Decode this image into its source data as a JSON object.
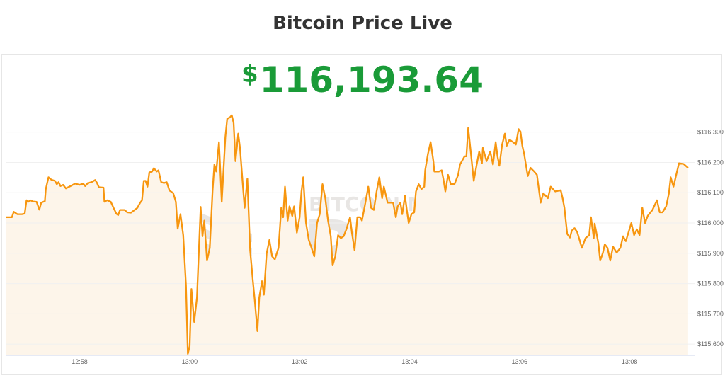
{
  "title": "Bitcoin Price Live",
  "price": {
    "currency": "$",
    "value": "116,193.64",
    "color": "#1a9b38"
  },
  "watermark": {
    "top": "BITCOIN MAGAZINE",
    "big": "PRO"
  },
  "chart_data": {
    "type": "area",
    "title": "",
    "xlabel": "",
    "ylabel": "",
    "line_color": "#f7960f",
    "fill_color": "#fdf5ea",
    "grid": true,
    "y_axis_position": "right",
    "xlim": [
      "12:56:40",
      "13:09:11"
    ],
    "ylim": [
      115563,
      116395
    ],
    "x_ticks": [
      "12:58",
      "13:00",
      "13:02",
      "13:04",
      "13:06",
      "13:08"
    ],
    "y_ticks": [
      115600,
      115700,
      115800,
      115900,
      116000,
      116100,
      116200,
      116300
    ],
    "y_tick_labels": [
      "$115,600",
      "$115,700",
      "$115,800",
      "$115,900",
      "$116,000",
      "$116,100",
      "$116,200",
      "$116,300"
    ],
    "series": [
      {
        "points": [
          [
            "12:56:40",
            116019
          ],
          [
            "12:56:46",
            116019
          ],
          [
            "12:56:48",
            116037
          ],
          [
            "12:56:52",
            116029
          ],
          [
            "12:56:57",
            116029
          ],
          [
            "12:57:00",
            116031
          ],
          [
            "12:57:02",
            116075
          ],
          [
            "12:57:04",
            116070
          ],
          [
            "12:57:06",
            116075
          ],
          [
            "12:57:09",
            116071
          ],
          [
            "12:57:13",
            116070
          ],
          [
            "12:57:16",
            116044
          ],
          [
            "12:57:18",
            116067
          ],
          [
            "12:57:22",
            116072
          ],
          [
            "12:57:23",
            116112
          ],
          [
            "12:57:26",
            116151
          ],
          [
            "12:57:29",
            116143
          ],
          [
            "12:57:33",
            116139
          ],
          [
            "12:57:35",
            116128
          ],
          [
            "12:57:37",
            116135
          ],
          [
            "12:57:39",
            116122
          ],
          [
            "12:57:42",
            116126
          ],
          [
            "12:57:45",
            116114
          ],
          [
            "12:57:50",
            116122
          ],
          [
            "12:57:55",
            116130
          ],
          [
            "12:58:00",
            116126
          ],
          [
            "12:58:04",
            116130
          ],
          [
            "12:58:06",
            116122
          ],
          [
            "12:58:09",
            116132
          ],
          [
            "12:58:13",
            116135
          ],
          [
            "12:58:17",
            116142
          ],
          [
            "12:58:19",
            116132
          ],
          [
            "12:58:21",
            116118
          ],
          [
            "12:58:26",
            116117
          ],
          [
            "12:58:27",
            116070
          ],
          [
            "12:58:30",
            116075
          ],
          [
            "12:58:34",
            116070
          ],
          [
            "12:58:37",
            116050
          ],
          [
            "12:58:40",
            116031
          ],
          [
            "12:58:42",
            116026
          ],
          [
            "12:58:44",
            116043
          ],
          [
            "12:58:49",
            116043
          ],
          [
            "12:58:52",
            116035
          ],
          [
            "12:58:56",
            116034
          ],
          [
            "12:59:00",
            116043
          ],
          [
            "12:59:03",
            116050
          ],
          [
            "12:59:06",
            116067
          ],
          [
            "12:59:08",
            116075
          ],
          [
            "12:59:10",
            116139
          ],
          [
            "12:59:12",
            116139
          ],
          [
            "12:59:14",
            116120
          ],
          [
            "12:59:16",
            116167
          ],
          [
            "12:59:19",
            116170
          ],
          [
            "12:59:21",
            116181
          ],
          [
            "12:59:24",
            116170
          ],
          [
            "12:59:26",
            116174
          ],
          [
            "12:59:29",
            116135
          ],
          [
            "12:59:32",
            116132
          ],
          [
            "12:59:35",
            116135
          ],
          [
            "12:59:38",
            116107
          ],
          [
            "12:59:42",
            116099
          ],
          [
            "12:59:45",
            116070
          ],
          [
            "12:59:47",
            115981
          ],
          [
            "12:59:50",
            116029
          ],
          [
            "12:59:53",
            115960
          ],
          [
            "12:59:56",
            115794
          ],
          [
            "12:59:58",
            115568
          ],
          [
            "13:00:00",
            115593
          ],
          [
            "13:00:02",
            115782
          ],
          [
            "13:00:05",
            115673
          ],
          [
            "13:00:08",
            115754
          ],
          [
            "13:00:12",
            116053
          ],
          [
            "13:00:14",
            115956
          ],
          [
            "13:00:16",
            116008
          ],
          [
            "13:00:19",
            115876
          ],
          [
            "13:00:22",
            115918
          ],
          [
            "13:00:25",
            116104
          ],
          [
            "13:00:27",
            116193
          ],
          [
            "13:00:29",
            116170
          ],
          [
            "13:00:32",
            116267
          ],
          [
            "13:00:35",
            116070
          ],
          [
            "13:00:39",
            116284
          ],
          [
            "13:00:41",
            116344
          ],
          [
            "13:00:44",
            116349
          ],
          [
            "13:00:46",
            116356
          ],
          [
            "13:00:48",
            116330
          ],
          [
            "13:00:50",
            116204
          ],
          [
            "13:00:53",
            116295
          ],
          [
            "13:00:55",
            116248
          ],
          [
            "13:00:58",
            116128
          ],
          [
            "13:01:00",
            116050
          ],
          [
            "13:01:03",
            116146
          ],
          [
            "13:01:06",
            115910
          ],
          [
            "13:01:09",
            115808
          ],
          [
            "13:01:11",
            115748
          ],
          [
            "13:01:14",
            115643
          ],
          [
            "13:01:16",
            115754
          ],
          [
            "13:01:19",
            115808
          ],
          [
            "13:01:21",
            115763
          ],
          [
            "13:01:24",
            115899
          ],
          [
            "13:01:27",
            115944
          ],
          [
            "13:01:30",
            115890
          ],
          [
            "13:01:33",
            115880
          ],
          [
            "13:01:37",
            115918
          ],
          [
            "13:01:40",
            116050
          ],
          [
            "13:01:42",
            116019
          ],
          [
            "13:01:44",
            116120
          ],
          [
            "13:01:47",
            116008
          ],
          [
            "13:01:49",
            116055
          ],
          [
            "13:01:52",
            116023
          ],
          [
            "13:01:54",
            116055
          ],
          [
            "13:01:57",
            115968
          ],
          [
            "13:02:00",
            116019
          ],
          [
            "13:02:02",
            116104
          ],
          [
            "13:02:04",
            116151
          ],
          [
            "13:02:07",
            116000
          ],
          [
            "13:02:10",
            115944
          ],
          [
            "13:02:13",
            115918
          ],
          [
            "13:02:16",
            115890
          ],
          [
            "13:02:19",
            116000
          ],
          [
            "13:02:22",
            116029
          ],
          [
            "13:02:25",
            116128
          ],
          [
            "13:02:28",
            116082
          ],
          [
            "13:02:31",
            116008
          ],
          [
            "13:02:34",
            115956
          ],
          [
            "13:02:36",
            115860
          ],
          [
            "13:02:39",
            115890
          ],
          [
            "13:02:42",
            115960
          ],
          [
            "13:02:45",
            115950
          ],
          [
            "13:02:48",
            115956
          ],
          [
            "13:02:51",
            115979
          ],
          [
            "13:02:55",
            116019
          ],
          [
            "13:02:57",
            115970
          ],
          [
            "13:03:00",
            115910
          ],
          [
            "13:03:03",
            116019
          ],
          [
            "13:03:06",
            116019
          ],
          [
            "13:03:08",
            116008
          ],
          [
            "13:03:11",
            116055
          ],
          [
            "13:03:15",
            116120
          ],
          [
            "13:03:18",
            116050
          ],
          [
            "13:03:21",
            116043
          ],
          [
            "13:03:24",
            116104
          ],
          [
            "13:03:27",
            116151
          ],
          [
            "13:03:30",
            116082
          ],
          [
            "13:03:32",
            116120
          ],
          [
            "13:03:36",
            116067
          ],
          [
            "13:03:42",
            116067
          ],
          [
            "13:03:45",
            116019
          ],
          [
            "13:03:47",
            116055
          ],
          [
            "13:03:50",
            116067
          ],
          [
            "13:03:52",
            116029
          ],
          [
            "13:03:55",
            116090
          ],
          [
            "13:03:57",
            116043
          ],
          [
            "13:03:59",
            116000
          ],
          [
            "13:04:02",
            116029
          ],
          [
            "13:04:05",
            116035
          ],
          [
            "13:04:07",
            116104
          ],
          [
            "13:04:10",
            116128
          ],
          [
            "13:04:13",
            116112
          ],
          [
            "13:04:16",
            116120
          ],
          [
            "13:04:17",
            116174
          ],
          [
            "13:04:20",
            116228
          ],
          [
            "13:04:23",
            116267
          ],
          [
            "13:04:26",
            116204
          ],
          [
            "13:04:27",
            116170
          ],
          [
            "13:04:32",
            116170
          ],
          [
            "13:04:35",
            116174
          ],
          [
            "13:04:37",
            116143
          ],
          [
            "13:04:39",
            116104
          ],
          [
            "13:04:42",
            116159
          ],
          [
            "13:04:45",
            116128
          ],
          [
            "13:04:49",
            116128
          ],
          [
            "13:04:53",
            116159
          ],
          [
            "13:04:55",
            116193
          ],
          [
            "13:05:00",
            116220
          ],
          [
            "13:05:02",
            116220
          ],
          [
            "13:05:04",
            116314
          ],
          [
            "13:05:07",
            116228
          ],
          [
            "13:05:10",
            116139
          ],
          [
            "13:05:13",
            116189
          ],
          [
            "13:05:16",
            116236
          ],
          [
            "13:05:19",
            116197
          ],
          [
            "13:05:20",
            116248
          ],
          [
            "13:05:24",
            116204
          ],
          [
            "13:05:28",
            116236
          ],
          [
            "13:05:31",
            116193
          ],
          [
            "13:05:34",
            116267
          ],
          [
            "13:05:36",
            116220
          ],
          [
            "13:05:38",
            116189
          ],
          [
            "13:05:41",
            116259
          ],
          [
            "13:05:44",
            116295
          ],
          [
            "13:05:46",
            116255
          ],
          [
            "13:05:49",
            116275
          ],
          [
            "13:05:53",
            116267
          ],
          [
            "13:05:56",
            116259
          ],
          [
            "13:05:59",
            116310
          ],
          [
            "13:06:01",
            116302
          ],
          [
            "13:06:03",
            116255
          ],
          [
            "13:06:05",
            116228
          ],
          [
            "13:06:09",
            116155
          ],
          [
            "13:06:12",
            116182
          ],
          [
            "13:06:16",
            116170
          ],
          [
            "13:06:19",
            116159
          ],
          [
            "13:06:23",
            116067
          ],
          [
            "13:06:26",
            116098
          ],
          [
            "13:06:31",
            116082
          ],
          [
            "13:06:34",
            116120
          ],
          [
            "13:06:39",
            116104
          ],
          [
            "13:06:45",
            116108
          ],
          [
            "13:06:47",
            116082
          ],
          [
            "13:06:49",
            116050
          ],
          [
            "13:06:52",
            115964
          ],
          [
            "13:06:55",
            115952
          ],
          [
            "13:06:57",
            115975
          ],
          [
            "13:07:00",
            115983
          ],
          [
            "13:07:03",
            115970
          ],
          [
            "13:07:08",
            115918
          ],
          [
            "13:07:12",
            115950
          ],
          [
            "13:07:16",
            115960
          ],
          [
            "13:07:18",
            116019
          ],
          [
            "13:07:21",
            115950
          ],
          [
            "13:07:22",
            115998
          ],
          [
            "13:07:26",
            115934
          ],
          [
            "13:07:28",
            115876
          ],
          [
            "13:07:31",
            115902
          ],
          [
            "13:07:33",
            115930
          ],
          [
            "13:07:36",
            115918
          ],
          [
            "13:07:39",
            115876
          ],
          [
            "13:07:42",
            115922
          ],
          [
            "13:07:46",
            115902
          ],
          [
            "13:07:50",
            115918
          ],
          [
            "13:07:53",
            115956
          ],
          [
            "13:07:56",
            115940
          ],
          [
            "13:07:59",
            115970
          ],
          [
            "13:08:02",
            116000
          ],
          [
            "13:08:05",
            115960
          ],
          [
            "13:08:08",
            115979
          ],
          [
            "13:08:11",
            115960
          ],
          [
            "13:08:14",
            116050
          ],
          [
            "13:08:17",
            116000
          ],
          [
            "13:08:20",
            116024
          ],
          [
            "13:08:25",
            116043
          ],
          [
            "13:08:30",
            116075
          ],
          [
            "13:08:33",
            116035
          ],
          [
            "13:08:36",
            116035
          ],
          [
            "13:08:40",
            116055
          ],
          [
            "13:08:43",
            116098
          ],
          [
            "13:08:45",
            116151
          ],
          [
            "13:08:48",
            116120
          ],
          [
            "13:08:51",
            116159
          ],
          [
            "13:08:54",
            116197
          ],
          [
            "13:08:59",
            116195
          ],
          [
            "13:09:04",
            116182
          ]
        ]
      }
    ]
  }
}
